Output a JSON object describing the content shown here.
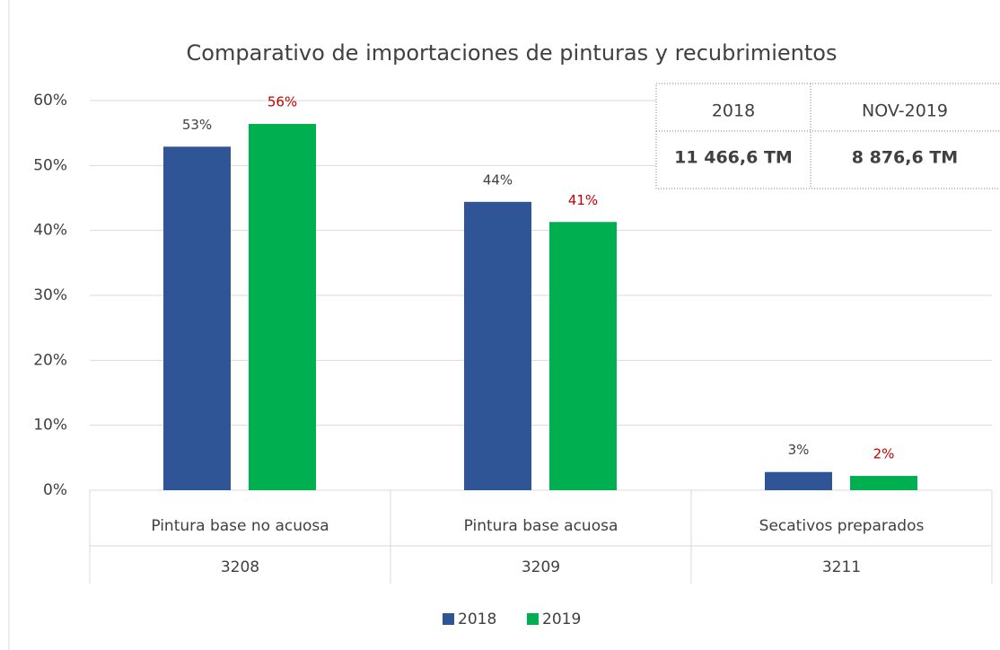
{
  "chart_data": {
    "type": "bar",
    "title": "Comparativo de importaciones de pinturas y recubrimientos",
    "categories": [
      "Pintura base no acuosa",
      "Pintura base acuosa",
      "Secativos preparados"
    ],
    "category_codes": [
      "3208",
      "3209",
      "3211"
    ],
    "series": [
      {
        "name": "2018",
        "color": "#2f5597",
        "label_color": "#404040",
        "values": [
          52.9,
          44.4,
          2.8
        ],
        "value_labels": [
          "53%",
          "44%",
          "3%"
        ]
      },
      {
        "name": "2019",
        "color": "#00b050",
        "label_color": "#c00000",
        "values": [
          56.4,
          41.3,
          2.2
        ],
        "value_labels": [
          "56%",
          "41%",
          "2%"
        ]
      }
    ],
    "ylim": [
      0,
      60
    ],
    "yticks": [
      {
        "value": 0,
        "label": "0%"
      },
      {
        "value": 10,
        "label": "10%"
      },
      {
        "value": 20,
        "label": "20%"
      },
      {
        "value": 30,
        "label": "30%"
      },
      {
        "value": 40,
        "label": "40%"
      },
      {
        "value": 50,
        "label": "50%"
      },
      {
        "value": 60,
        "label": "60%"
      }
    ],
    "grid": true,
    "legend": "bottom",
    "inset_table": {
      "header": [
        "2018",
        "NOV-2019"
      ],
      "row": [
        "11 466,6 TM",
        "8 876,6 TM"
      ]
    }
  }
}
